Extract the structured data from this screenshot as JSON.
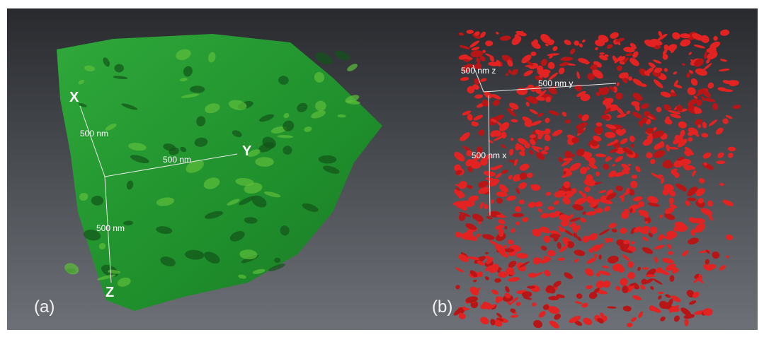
{
  "panels": [
    {
      "label": "(a)",
      "axes": {
        "x": "X",
        "y": "Y",
        "z": "Z"
      },
      "scale_labels": [
        "500 nm",
        "500 nm",
        "500 nm"
      ]
    },
    {
      "label": "(b)",
      "scale_labels": [
        "500 nm z",
        "500 nm y",
        "500 nm x"
      ]
    }
  ]
}
